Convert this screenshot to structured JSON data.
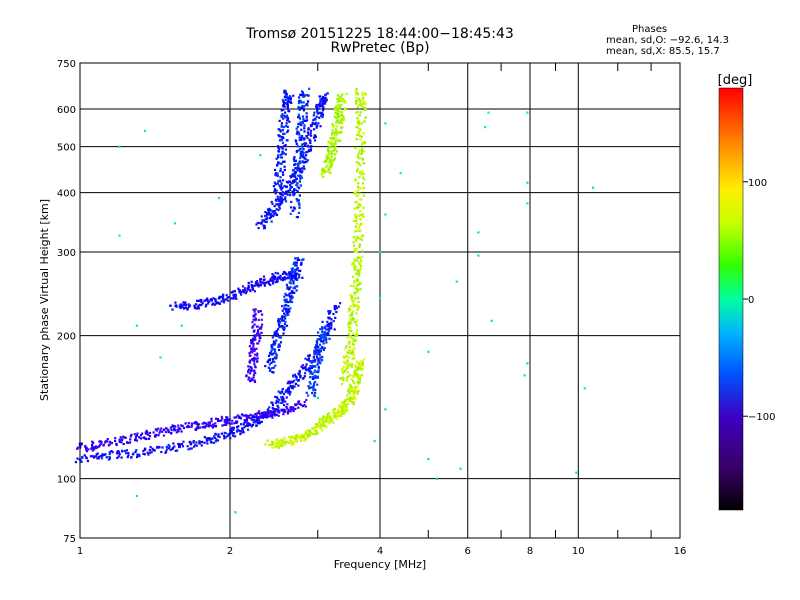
{
  "header": {
    "title_line1": "Tromsø 20151225 18:44:00−18:45:43",
    "title_line2": "RwPretec (Bp)"
  },
  "stats": {
    "title": "Phases",
    "line_o": "mean, sd,O: −92.6, 14.3",
    "line_x": "mean, sd,X:  85.5, 15.7"
  },
  "colorbar": {
    "label": "[deg]",
    "ticks": [
      "100",
      "0",
      "−100"
    ],
    "tick_values": [
      100,
      0,
      -100
    ],
    "range": [
      -180,
      180
    ]
  },
  "chart_data": {
    "type": "scatter",
    "xlabel": "Frequency [MHz]",
    "ylabel": "Stationary phase Virtual Height [km]",
    "xscale": "log",
    "yscale": "log",
    "xlim": [
      1,
      16
    ],
    "ylim": [
      75,
      750
    ],
    "x_ticks": [
      1,
      2,
      4,
      6,
      8,
      10,
      16
    ],
    "x_tick_labels": [
      "1",
      "2",
      "4",
      "6",
      "8",
      "10",
      "16"
    ],
    "x_minor": [
      3,
      5,
      7,
      9,
      12,
      14
    ],
    "y_ticks": [
      75,
      100,
      200,
      300,
      400,
      500,
      600,
      750
    ],
    "y_tick_labels": [
      "75",
      "100",
      "200",
      "300",
      "400",
      "500",
      "600",
      "750"
    ],
    "grid": true,
    "color_by": "phase_deg",
    "series": [
      {
        "name": "O",
        "phase": -100,
        "points": [
          [
            1.0,
            110
          ],
          [
            1.15,
            112
          ],
          [
            1.3,
            113
          ],
          [
            1.5,
            116
          ],
          [
            1.7,
            118
          ],
          [
            1.9,
            122
          ],
          [
            2.05,
            126
          ],
          [
            2.2,
            130
          ],
          [
            2.35,
            135
          ],
          [
            2.45,
            140
          ],
          [
            2.55,
            150
          ],
          [
            2.7,
            160
          ],
          [
            2.85,
            172
          ],
          [
            3.0,
            185
          ],
          [
            3.15,
            205
          ],
          [
            3.25,
            230
          ]
        ]
      },
      {
        "name": "O",
        "phase": -115,
        "points": [
          [
            1.0,
            116
          ],
          [
            1.1,
            118
          ],
          [
            1.25,
            121
          ],
          [
            1.4,
            124
          ],
          [
            1.55,
            127
          ],
          [
            1.7,
            129
          ],
          [
            1.85,
            131
          ],
          [
            2.0,
            133
          ],
          [
            2.2,
            135
          ],
          [
            2.4,
            137
          ],
          [
            2.6,
            140
          ],
          [
            2.8,
            144
          ]
        ]
      },
      {
        "name": "O",
        "phase": -105,
        "points": [
          [
            1.55,
            230
          ],
          [
            1.7,
            232
          ],
          [
            1.85,
            236
          ],
          [
            2.0,
            242
          ],
          [
            2.15,
            250
          ],
          [
            2.3,
            258
          ],
          [
            2.45,
            264
          ],
          [
            2.6,
            268
          ],
          [
            2.75,
            270
          ]
        ]
      },
      {
        "name": "O",
        "phase": -100,
        "points": [
          [
            2.3,
            340
          ],
          [
            2.4,
            360
          ],
          [
            2.5,
            380
          ],
          [
            2.6,
            400
          ],
          [
            2.7,
            430
          ],
          [
            2.8,
            470
          ],
          [
            2.9,
            520
          ],
          [
            3.0,
            570
          ],
          [
            3.05,
            620
          ],
          [
            3.1,
            640
          ]
        ]
      },
      {
        "name": "O",
        "phase": -95,
        "points": [
          [
            2.5,
            400
          ],
          [
            2.52,
            450
          ],
          [
            2.55,
            500
          ],
          [
            2.57,
            560
          ],
          [
            2.6,
            620
          ],
          [
            2.62,
            650
          ]
        ]
      },
      {
        "name": "O",
        "phase": -90,
        "points": [
          [
            2.7,
            360
          ],
          [
            2.72,
            420
          ],
          [
            2.75,
            480
          ],
          [
            2.78,
            540
          ],
          [
            2.8,
            600
          ],
          [
            2.82,
            650
          ]
        ]
      },
      {
        "name": "O",
        "phase": -92,
        "points": [
          [
            2.4,
            170
          ],
          [
            2.45,
            185
          ],
          [
            2.5,
            200
          ],
          [
            2.55,
            215
          ],
          [
            2.6,
            230
          ],
          [
            2.65,
            250
          ],
          [
            2.7,
            270
          ],
          [
            2.75,
            290
          ]
        ]
      },
      {
        "name": "O",
        "phase": -120,
        "points": [
          [
            2.2,
            160
          ],
          [
            2.22,
            175
          ],
          [
            2.24,
            190
          ],
          [
            2.26,
            205
          ],
          [
            2.28,
            225
          ]
        ]
      },
      {
        "name": "O",
        "phase": -85,
        "points": [
          [
            2.9,
            150
          ],
          [
            2.95,
            165
          ],
          [
            3.0,
            180
          ],
          [
            3.05,
            195
          ],
          [
            3.1,
            210
          ]
        ]
      },
      {
        "name": "X",
        "phase": 95,
        "points": [
          [
            2.4,
            118
          ],
          [
            2.55,
            119
          ],
          [
            2.7,
            121
          ],
          [
            2.85,
            124
          ],
          [
            3.0,
            128
          ],
          [
            3.1,
            132
          ],
          [
            3.2,
            135
          ],
          [
            3.3,
            138
          ],
          [
            3.4,
            142
          ],
          [
            3.5,
            148
          ],
          [
            3.55,
            156
          ],
          [
            3.6,
            166
          ],
          [
            3.65,
            176
          ]
        ]
      },
      {
        "name": "X",
        "phase": 92,
        "points": [
          [
            3.4,
            160
          ],
          [
            3.45,
            175
          ],
          [
            3.5,
            190
          ],
          [
            3.52,
            210
          ],
          [
            3.55,
            235
          ],
          [
            3.58,
            260
          ],
          [
            3.6,
            290
          ],
          [
            3.62,
            330
          ],
          [
            3.63,
            380
          ],
          [
            3.64,
            450
          ],
          [
            3.65,
            520
          ],
          [
            3.66,
            600
          ],
          [
            3.66,
            650
          ]
        ]
      },
      {
        "name": "X",
        "phase": 88,
        "points": [
          [
            3.1,
            440
          ],
          [
            3.15,
            460
          ],
          [
            3.2,
            490
          ],
          [
            3.25,
            520
          ],
          [
            3.3,
            560
          ],
          [
            3.33,
            600
          ],
          [
            3.36,
            640
          ]
        ]
      },
      {
        "name": "scattered",
        "phase": 0,
        "points": [
          [
            1.2,
            500
          ],
          [
            1.35,
            540
          ],
          [
            1.55,
            345
          ],
          [
            1.2,
            325
          ],
          [
            1.6,
            210
          ],
          [
            1.3,
            210
          ],
          [
            1.45,
            180
          ],
          [
            1.9,
            390
          ],
          [
            2.3,
            480
          ],
          [
            4.1,
            560
          ],
          [
            4.4,
            440
          ],
          [
            4.1,
            360
          ],
          [
            6.3,
            330
          ],
          [
            6.6,
            590
          ],
          [
            6.5,
            550
          ],
          [
            7.9,
            590
          ],
          [
            7.9,
            420
          ],
          [
            7.9,
            380
          ],
          [
            6.7,
            215
          ],
          [
            5.0,
            185
          ],
          [
            7.9,
            175
          ],
          [
            7.8,
            165
          ],
          [
            6.3,
            295
          ],
          [
            5.7,
            260
          ],
          [
            4.0,
            300
          ],
          [
            3.9,
            120
          ],
          [
            4.0,
            240
          ],
          [
            4.1,
            140
          ],
          [
            5.2,
            100
          ],
          [
            5.0,
            110
          ],
          [
            5.8,
            105
          ],
          [
            9.9,
            103
          ],
          [
            10.3,
            155
          ],
          [
            10.7,
            410
          ],
          [
            2.05,
            85
          ],
          [
            1.3,
            92
          ],
          [
            3.0,
            148
          ]
        ]
      }
    ]
  }
}
